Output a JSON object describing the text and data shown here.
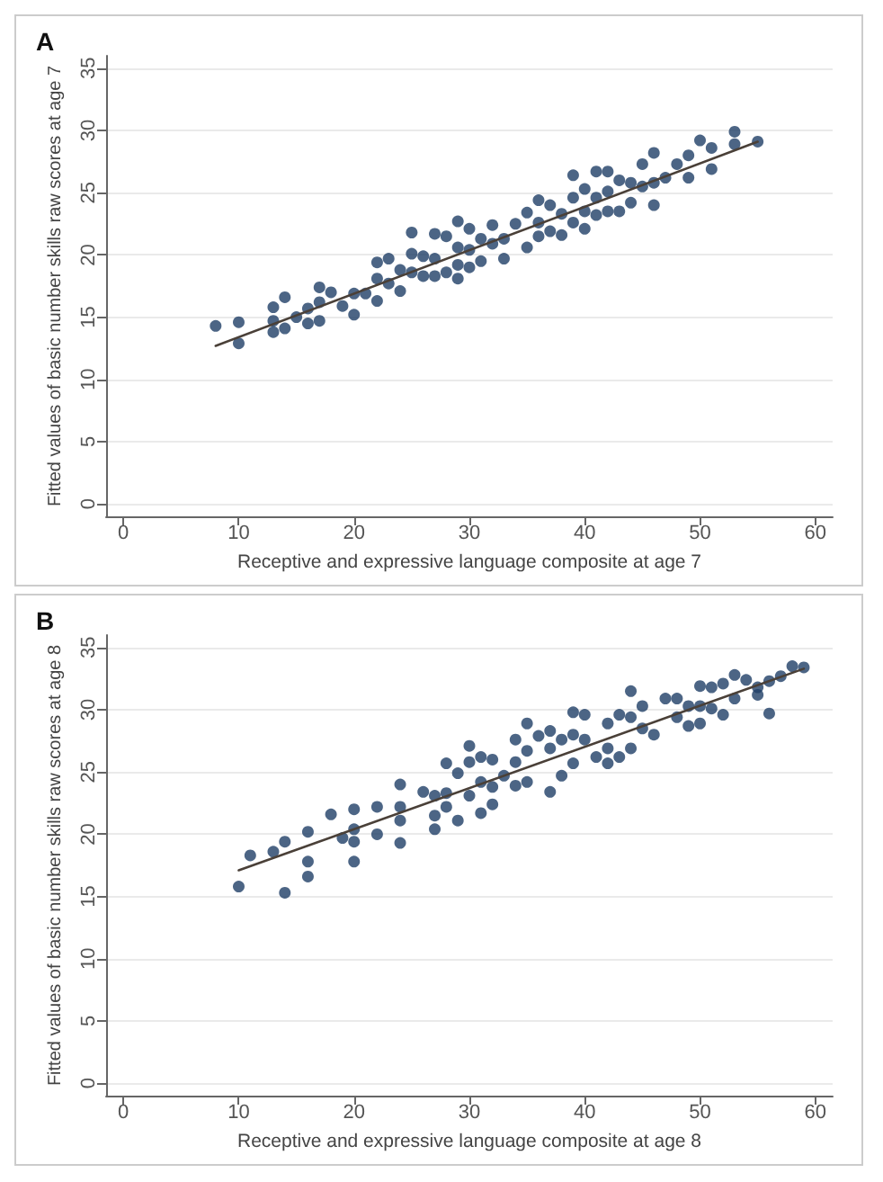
{
  "chart_data": [
    {
      "type": "scatter",
      "title": "A",
      "xlabel": "Receptive and expressive language composite at age 7",
      "ylabel": "Fitted values of basic number skills raw scores at age 7",
      "xlim": [
        -1.5,
        61.5
      ],
      "ylim": [
        -1,
        36
      ],
      "xticks": [
        0,
        10,
        20,
        30,
        40,
        50,
        60
      ],
      "yticks": [
        0,
        5,
        10,
        15,
        20,
        25,
        30,
        35
      ],
      "grid": "y",
      "marker": "circle",
      "series": [
        {
          "color": "#1f3f66",
          "x": [
            8,
            10,
            10,
            13,
            13,
            13,
            14,
            14,
            15,
            16,
            16,
            17,
            17,
            17,
            18,
            19,
            20,
            20,
            21,
            22,
            22,
            22,
            23,
            23,
            24,
            24,
            25,
            25,
            25,
            26,
            26,
            27,
            27,
            27,
            28,
            28,
            29,
            29,
            29,
            29,
            30,
            30,
            30,
            31,
            31,
            32,
            32,
            33,
            33,
            34,
            35,
            35,
            36,
            36,
            36,
            37,
            37,
            38,
            38,
            39,
            39,
            39,
            40,
            40,
            40,
            41,
            41,
            41,
            42,
            42,
            42,
            43,
            43,
            44,
            44,
            45,
            45,
            46,
            46,
            46,
            47,
            48,
            49,
            49,
            50,
            51,
            51,
            53,
            53,
            55
          ],
          "values": [
            14.3,
            14.6,
            12.9,
            15.8,
            14.7,
            13.8,
            16.6,
            14.1,
            15.0,
            15.7,
            14.5,
            17.4,
            16.2,
            14.7,
            17.0,
            15.9,
            16.9,
            15.2,
            16.9,
            19.4,
            18.1,
            16.3,
            19.7,
            17.7,
            18.8,
            17.1,
            21.8,
            20.1,
            18.6,
            19.9,
            18.3,
            21.7,
            19.7,
            18.3,
            21.5,
            18.6,
            22.7,
            20.6,
            19.2,
            18.1,
            22.1,
            20.4,
            19.0,
            21.3,
            19.5,
            22.4,
            20.9,
            21.3,
            19.7,
            22.5,
            23.4,
            20.6,
            24.4,
            22.6,
            21.5,
            24.0,
            21.9,
            23.3,
            21.6,
            26.4,
            24.6,
            22.6,
            25.3,
            23.5,
            22.1,
            26.7,
            24.6,
            23.2,
            26.7,
            25.1,
            23.5,
            26.0,
            23.5,
            25.8,
            24.2,
            27.3,
            25.5,
            28.2,
            25.8,
            24.0,
            26.2,
            27.3,
            28.0,
            26.2,
            29.2,
            28.6,
            26.9,
            29.9,
            28.9,
            29.1
          ]
        },
        {
          "type": "line",
          "color": "#4a4038",
          "marker": "none",
          "line_style": "solid",
          "x": [
            8,
            55
          ],
          "values": [
            12.7,
            29.1
          ]
        }
      ]
    },
    {
      "type": "scatter",
      "title": "B",
      "xlabel": "Receptive and expressive language composite at age 8",
      "ylabel": "Fitted values of basic number skills raw scores at age 8",
      "xlim": [
        -1.5,
        61.5
      ],
      "ylim": [
        -1,
        36
      ],
      "xticks": [
        0,
        10,
        20,
        30,
        40,
        50,
        60
      ],
      "yticks": [
        0,
        5,
        10,
        15,
        20,
        25,
        30,
        35
      ],
      "grid": "y",
      "marker": "circle",
      "series": [
        {
          "color": "#1f3f66",
          "x": [
            10,
            11,
            13,
            14,
            14,
            16,
            16,
            16,
            18,
            19,
            20,
            20,
            20,
            20,
            22,
            22,
            24,
            24,
            24,
            24,
            26,
            27,
            27,
            27,
            28,
            28,
            28,
            29,
            29,
            30,
            30,
            30,
            31,
            31,
            31,
            32,
            32,
            32,
            33,
            34,
            34,
            34,
            35,
            35,
            35,
            36,
            37,
            37,
            37,
            38,
            38,
            39,
            39,
            39,
            40,
            40,
            41,
            42,
            42,
            42,
            43,
            43,
            44,
            44,
            44,
            45,
            45,
            46,
            47,
            48,
            48,
            49,
            49,
            50,
            50,
            50,
            51,
            51,
            52,
            52,
            53,
            53,
            54,
            55,
            55,
            56,
            56,
            57,
            58,
            59
          ],
          "values": [
            15.8,
            18.3,
            18.6,
            19.4,
            15.3,
            20.2,
            17.8,
            16.6,
            21.6,
            19.7,
            22.0,
            20.4,
            19.4,
            17.8,
            22.2,
            20.0,
            24.0,
            22.2,
            21.1,
            19.3,
            23.4,
            23.1,
            21.5,
            20.4,
            25.7,
            23.3,
            22.2,
            24.9,
            21.1,
            27.1,
            25.8,
            23.1,
            26.2,
            24.2,
            21.7,
            26.0,
            23.8,
            22.4,
            24.7,
            27.6,
            25.8,
            23.9,
            28.9,
            26.7,
            24.2,
            27.9,
            28.3,
            26.9,
            23.4,
            27.6,
            24.7,
            29.8,
            28.0,
            25.7,
            29.6,
            27.6,
            26.2,
            28.9,
            26.9,
            25.7,
            29.6,
            26.2,
            31.5,
            29.4,
            26.9,
            30.3,
            28.5,
            28.0,
            30.9,
            30.9,
            29.4,
            30.3,
            28.7,
            31.9,
            30.3,
            28.9,
            31.8,
            30.1,
            32.1,
            29.6,
            32.8,
            30.9,
            32.4,
            31.8,
            31.2,
            32.3,
            29.7,
            32.7,
            33.5,
            33.4
          ]
        },
        {
          "type": "line",
          "color": "#4a4038",
          "marker": "none",
          "line_style": "solid",
          "x": [
            10,
            59
          ],
          "values": [
            17.1,
            33.3
          ]
        }
      ]
    }
  ]
}
